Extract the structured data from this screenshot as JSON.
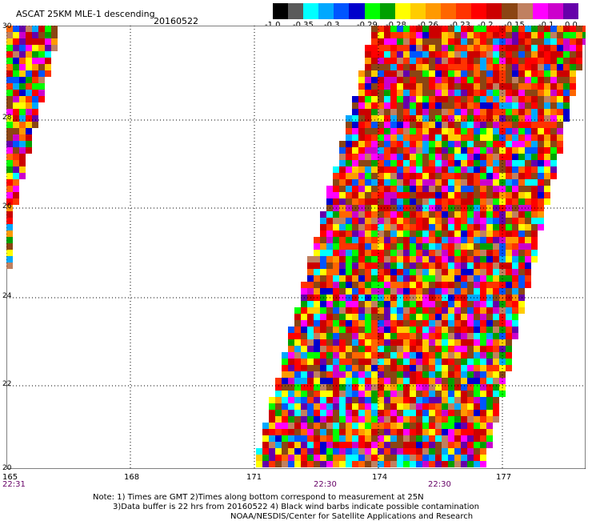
{
  "header": {
    "title": "ASCAT 25KM MLE-1 descending",
    "date": "20160522"
  },
  "colorbar": {
    "colors": [
      "#000000",
      "#5a5a5a",
      "#00ffff",
      "#00a8ff",
      "#0055ff",
      "#0000cc",
      "#00ff00",
      "#00a000",
      "#ffff00",
      "#ffcc00",
      "#ff9900",
      "#ff6600",
      "#ff3300",
      "#ff0000",
      "#cc0000",
      "#8b4513",
      "#c08060",
      "#ff00ff",
      "#cc00cc",
      "#6600aa"
    ],
    "labels": [
      "-1.0",
      "-0.35",
      "-0.3",
      "-0.29",
      "-0.28",
      "-0.26",
      "-0.23",
      "-0.2",
      "-0.15",
      "-0.1",
      "0.0"
    ]
  },
  "axes": {
    "lat_labels": [
      "30",
      "28",
      "26",
      "24",
      "22",
      "20"
    ],
    "lon_labels": [
      "165",
      "168",
      "171",
      "174",
      "177"
    ],
    "time_labels": [
      "22:31",
      "22:30",
      "22:30"
    ]
  },
  "notes": {
    "line1": "Note: 1) Times are GMT 2)Times along bottom correspond to measurement at 25N",
    "line2": "3)Data buffer is 22 hrs from 20160522 4) Black wind barbs indicate possible contamination",
    "line3": "NOAA/NESDIS/Center for Satellite Applications and Research"
  }
}
